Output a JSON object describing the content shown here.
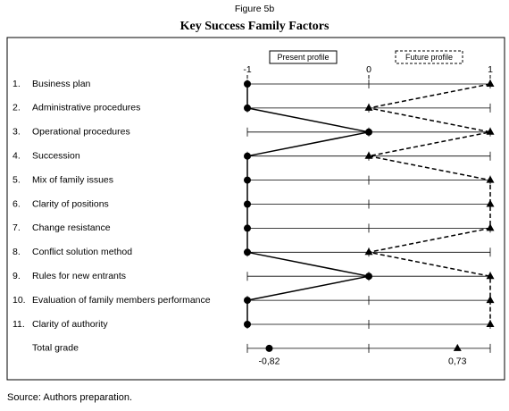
{
  "figure_label": "Figure 5b",
  "source": "Source: Authors preparation.",
  "chart_data": {
    "type": "line",
    "title": "Key Success Family Factors",
    "numbers": [
      "1.",
      "2.",
      "3.",
      "4.",
      "5.",
      "6.",
      "7.",
      "8.",
      "9.",
      "10.",
      "11."
    ],
    "categories": [
      "Business plan",
      "Administrative procedures",
      "Operational procedures",
      "Succession",
      "Mix of family issues",
      "Clarity of positions",
      "Change resistance",
      "Conflict solution method",
      "Rules for new entrants",
      "Evaluation of family members performance",
      "Clarity of authority"
    ],
    "xlim": [
      -1,
      1
    ],
    "xticks": [
      -1,
      0,
      1
    ],
    "series": [
      {
        "name": "Present profile",
        "color": "#000000",
        "marker": "circle",
        "dash": false,
        "values": [
          -1,
          -1,
          0,
          -1,
          -1,
          -1,
          -1,
          -1,
          0,
          -1,
          -1
        ],
        "total": -0.82,
        "total_label": "-0,82"
      },
      {
        "name": "Future profile",
        "color": "#000000",
        "marker": "triangle",
        "dash": true,
        "values": [
          1,
          0,
          1,
          0,
          1,
          1,
          1,
          0,
          1,
          1,
          1
        ],
        "total": 0.73,
        "total_label": "0,73"
      }
    ],
    "total_name": "Total grade"
  }
}
